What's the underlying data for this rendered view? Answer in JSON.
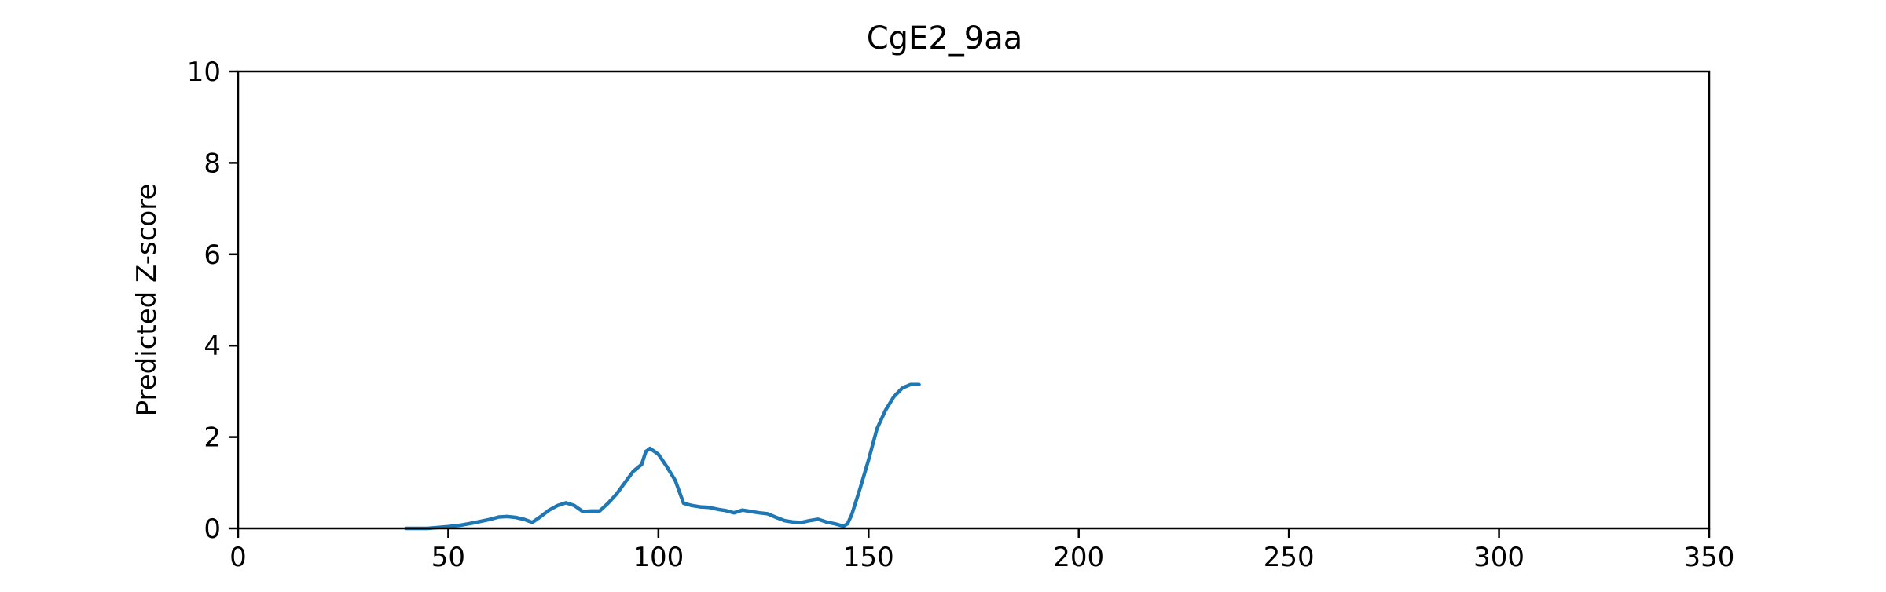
{
  "chart_data": {
    "type": "line",
    "title": "CgE2_9aa",
    "xlabel": "",
    "ylabel": "Predicted Z-score",
    "xlim": [
      0,
      350
    ],
    "ylim": [
      0,
      10
    ],
    "xticks": [
      0,
      50,
      100,
      150,
      200,
      250,
      300,
      350
    ],
    "yticks": [
      0,
      2,
      4,
      6,
      8,
      10
    ],
    "xtick_labels": [
      "0",
      "50",
      "100",
      "150",
      "200",
      "250",
      "300",
      "350"
    ],
    "ytick_labels": [
      "0",
      "2",
      "4",
      "6",
      "8",
      "10"
    ],
    "grid": false,
    "line_color": "#1f77b4",
    "series": [
      {
        "x": [
          40,
          45,
          50,
          53,
          56,
          60,
          62,
          64,
          66,
          68,
          70,
          72,
          74,
          76,
          78,
          80,
          82,
          84,
          86,
          88,
          90,
          92,
          94,
          96,
          97,
          98,
          100,
          102,
          104,
          106,
          108,
          110,
          112,
          114,
          116,
          118,
          120,
          122,
          124,
          126,
          128,
          130,
          132,
          134,
          136,
          138,
          140,
          142,
          144,
          145,
          146,
          148,
          150,
          152,
          154,
          156,
          158,
          160,
          162
        ],
        "y": [
          0.0,
          0.0,
          0.04,
          0.07,
          0.12,
          0.2,
          0.25,
          0.26,
          0.24,
          0.2,
          0.13,
          0.26,
          0.4,
          0.5,
          0.56,
          0.5,
          0.37,
          0.38,
          0.38,
          0.55,
          0.75,
          1.0,
          1.25,
          1.4,
          1.68,
          1.75,
          1.62,
          1.35,
          1.05,
          0.55,
          0.5,
          0.47,
          0.46,
          0.42,
          0.39,
          0.34,
          0.4,
          0.37,
          0.34,
          0.32,
          0.24,
          0.17,
          0.14,
          0.13,
          0.17,
          0.2,
          0.14,
          0.1,
          0.05,
          0.1,
          0.3,
          0.88,
          1.5,
          2.18,
          2.58,
          2.88,
          3.07,
          3.15,
          3.15
        ]
      }
    ]
  }
}
